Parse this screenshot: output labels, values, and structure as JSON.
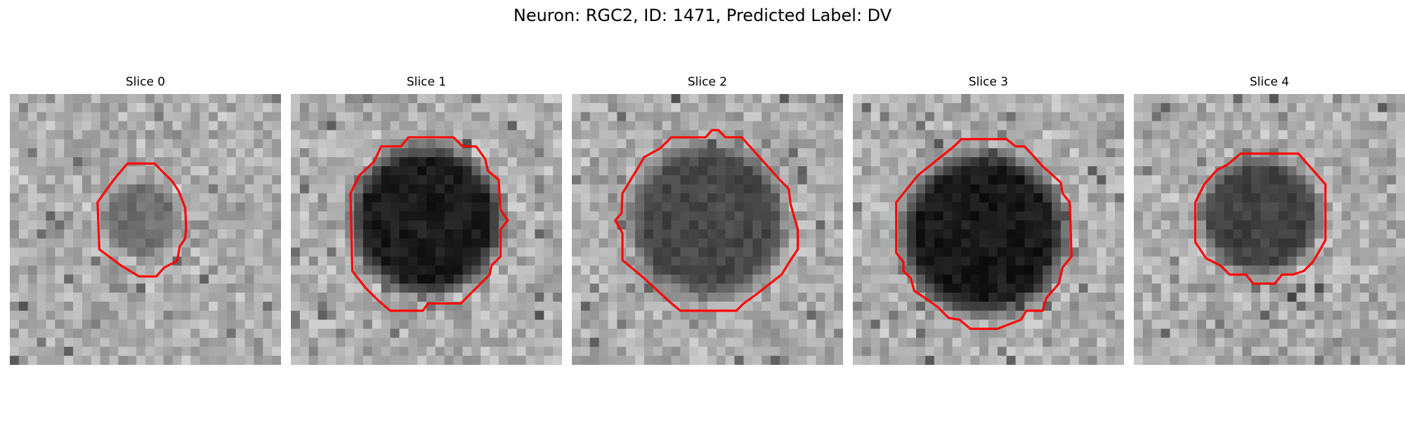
{
  "figure": {
    "title": "Neuron: RGC2, ID: 1471, Predicted Label: DV",
    "contour_color": "#ff0000"
  },
  "panels": [
    {
      "title": "Slice 0",
      "blob_level": 0.38,
      "cell_size": "small"
    },
    {
      "title": "Slice 1",
      "blob_level": 0.05,
      "cell_size": "large"
    },
    {
      "title": "Slice 2",
      "blob_level": 0.22,
      "cell_size": "large"
    },
    {
      "title": "Slice 3",
      "blob_level": 0.04,
      "cell_size": "large"
    },
    {
      "title": "Slice 4",
      "blob_level": 0.2,
      "cell_size": "medium"
    }
  ]
}
